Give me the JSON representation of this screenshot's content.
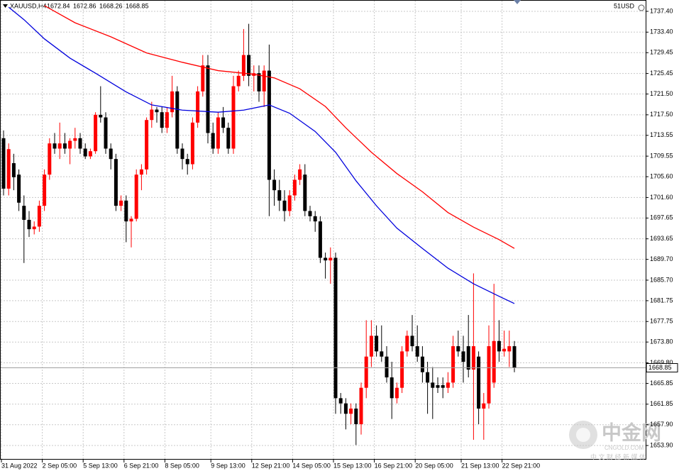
{
  "chart_data": {
    "type": "candlestick",
    "symbol": "XAUUSD,H4",
    "header_values": [
      1672.84,
      1672.86,
      1668.26,
      1668.85
    ],
    "account_label": "51USD",
    "categories": [
      "31 Aug 2022",
      null,
      null,
      null,
      null,
      null,
      null,
      null,
      "2 Sep 05:00",
      null,
      null,
      null,
      null,
      null,
      null,
      null,
      "5 Sep 13:00",
      null,
      null,
      null,
      null,
      null,
      null,
      null,
      "6 Sep 21:00",
      null,
      null,
      null,
      null,
      null,
      null,
      null,
      "8 Sep 05:00",
      null,
      null,
      null,
      null,
      null,
      null,
      null,
      null,
      "9 Sep 13:00",
      null,
      null,
      null,
      null,
      null,
      null,
      null,
      "12 Sep 21:00",
      null,
      null,
      null,
      null,
      null,
      null,
      null,
      "14 Sep 05:00",
      null,
      null,
      null,
      null,
      null,
      null,
      null,
      "15 Sep 13:00",
      null,
      null,
      null,
      null,
      null,
      null,
      null,
      "16 Sep 21:00",
      null,
      null,
      null,
      null,
      null,
      null,
      null,
      "20 Sep 05:00",
      null,
      null,
      null,
      null,
      null,
      null,
      null,
      null,
      "21 Sep 13:00",
      null,
      null,
      null,
      null,
      null,
      null,
      null,
      "22 Sep 21:00",
      null,
      null
    ],
    "ohlc": [
      [
        1713,
        1714.5,
        1702,
        1703.3
      ],
      [
        1703.3,
        1712,
        1702,
        1710.9
      ],
      [
        1708.2,
        1710,
        1703,
        1705.5
      ],
      [
        1706,
        1707,
        1699,
        1700.6
      ],
      [
        1700,
        1702,
        1689,
        1697.3
      ],
      [
        1697.3,
        1699,
        1694,
        1695.5
      ],
      [
        1695.5,
        1697,
        1694.5,
        1696
      ],
      [
        1696,
        1701,
        1695,
        1700
      ],
      [
        1700,
        1707,
        1699,
        1706
      ],
      [
        1706,
        1713,
        1705,
        1712
      ],
      [
        1712,
        1714,
        1710,
        1711
      ],
      [
        1711,
        1716,
        1709,
        1712
      ],
      [
        1712,
        1714,
        1710,
        1711
      ],
      [
        1711,
        1713,
        1708,
        1712.5
      ],
      [
        1712.5,
        1715,
        1711,
        1713
      ],
      [
        1713,
        1714,
        1710,
        1711
      ],
      [
        1711,
        1712,
        1709,
        1709.5
      ],
      [
        1709.5,
        1711,
        1709,
        1710.5
      ],
      [
        1710.5,
        1718,
        1710,
        1717.5
      ],
      [
        1717.5,
        1723,
        1716,
        1717
      ],
      [
        1717,
        1718,
        1710,
        1711
      ],
      [
        1711,
        1712,
        1707,
        1709
      ],
      [
        1709,
        1710,
        1699,
        1700
      ],
      [
        1700,
        1702,
        1699,
        1701
      ],
      [
        1701,
        1702,
        1693,
        1697
      ],
      [
        1697,
        1698,
        1692,
        1697.5
      ],
      [
        1697.5,
        1707,
        1697,
        1706
      ],
      [
        1706,
        1708,
        1703,
        1707
      ],
      [
        1707,
        1717,
        1706,
        1716.5
      ],
      [
        1716.5,
        1720,
        1715,
        1718.5
      ],
      [
        1718.5,
        1719,
        1716,
        1718
      ],
      [
        1718,
        1719,
        1714,
        1715
      ],
      [
        1715,
        1719,
        1714,
        1718
      ],
      [
        1718,
        1725,
        1717,
        1722
      ],
      [
        1722,
        1723,
        1710,
        1711
      ],
      [
        1711,
        1712,
        1707,
        1709
      ],
      [
        1709,
        1710,
        1706,
        1708
      ],
      [
        1708,
        1717,
        1707,
        1716
      ],
      [
        1716,
        1723,
        1715,
        1722
      ],
      [
        1722,
        1729,
        1721,
        1727
      ],
      [
        1727,
        1729,
        1712,
        1714
      ],
      [
        1714,
        1716,
        1710,
        1711
      ],
      [
        1711,
        1718,
        1710,
        1717
      ],
      [
        1717,
        1719,
        1714,
        1715
      ],
      [
        1715,
        1716,
        1710,
        1711
      ],
      [
        1711,
        1725,
        1710,
        1723
      ],
      [
        1723,
        1726,
        1722,
        1725
      ],
      [
        1725,
        1734,
        1724,
        1729
      ],
      [
        1729,
        1735,
        1723,
        1725
      ],
      [
        1725,
        1727,
        1722,
        1725.5
      ],
      [
        1725.5,
        1727,
        1720,
        1722
      ],
      [
        1722,
        1727,
        1719,
        1726
      ],
      [
        1726,
        1731,
        1698,
        1705
      ],
      [
        1705,
        1707,
        1700,
        1703
      ],
      [
        1703,
        1705,
        1699,
        1701
      ],
      [
        1701,
        1703,
        1697,
        1699
      ],
      [
        1699,
        1703,
        1698,
        1702
      ],
      [
        1702,
        1706,
        1701,
        1705
      ],
      [
        1705,
        1708,
        1704,
        1707
      ],
      [
        1706,
        1708,
        1698,
        1699
      ],
      [
        1699,
        1700,
        1697,
        1698
      ],
      [
        1698,
        1699,
        1695,
        1697
      ],
      [
        1697,
        1698,
        1689,
        1690
      ],
      [
        1690,
        1691,
        1686,
        1689.5
      ],
      [
        1689.5,
        1692,
        1685,
        1690
      ],
      [
        1690,
        1691,
        1660,
        1663
      ],
      [
        1663,
        1664,
        1660,
        1662
      ],
      [
        1662,
        1663,
        1657,
        1660
      ],
      [
        1660,
        1662,
        1658,
        1661
      ],
      [
        1661,
        1662,
        1654,
        1658
      ],
      [
        1658,
        1666,
        1656,
        1665
      ],
      [
        1665,
        1678,
        1663,
        1671
      ],
      [
        1671,
        1678,
        1669,
        1675
      ],
      [
        1675,
        1677,
        1671,
        1672
      ],
      [
        1672,
        1677,
        1670,
        1671
      ],
      [
        1671,
        1673,
        1666,
        1667
      ],
      [
        1667,
        1670,
        1659,
        1663
      ],
      [
        1663,
        1666,
        1662,
        1665
      ],
      [
        1665,
        1673,
        1664,
        1672
      ],
      [
        1672,
        1676,
        1671,
        1675
      ],
      [
        1675,
        1679,
        1672,
        1673
      ],
      [
        1673,
        1677,
        1670,
        1671
      ],
      [
        1671,
        1673,
        1666,
        1668
      ],
      [
        1668,
        1670,
        1660,
        1666
      ],
      [
        1666,
        1669,
        1659,
        1665
      ],
      [
        1665.5,
        1667,
        1664,
        1665
      ],
      [
        1665.5,
        1667,
        1663,
        1665
      ],
      [
        1665,
        1668,
        1664,
        1666
      ],
      [
        1666,
        1675,
        1665,
        1673
      ],
      [
        1673,
        1676,
        1671,
        1672
      ],
      [
        1672,
        1675,
        1666,
        1670
      ],
      [
        1673,
        1679,
        1667,
        1668.5
      ],
      [
        1668.5,
        1687,
        1655,
        1673
      ],
      [
        1671,
        1672,
        1658,
        1661
      ],
      [
        1661,
        1664,
        1655,
        1662
      ],
      [
        1662,
        1677,
        1661,
        1673
      ],
      [
        1666,
        1685,
        1665,
        1674
      ],
      [
        1674,
        1678,
        1670,
        1672
      ],
      [
        1672,
        1676,
        1671,
        1672.5
      ],
      [
        1672,
        1676,
        1669,
        1673
      ],
      [
        1673,
        1674,
        1668,
        1668.85
      ]
    ],
    "up_color": "#ff0000",
    "down_color": "#000000",
    "lines": [
      {
        "color": "#ff0000",
        "x": [
          8,
          14,
          21,
          28,
          35,
          42,
          49,
          53,
          58,
          63,
          67,
          72,
          77,
          82,
          87,
          92,
          97,
          100
        ],
        "values": [
          1738.5,
          1735.2,
          1732.5,
          1729.4,
          1727.6,
          1726.0,
          1725.3,
          1724.6,
          1722.5,
          1719.1,
          1715.0,
          1710.3,
          1706.2,
          1702.7,
          1698.7,
          1695.9,
          1693.5,
          1691.8
        ]
      },
      {
        "color": "#0000dd",
        "x": [
          1,
          4,
          8,
          13,
          18,
          24,
          29,
          35,
          42,
          47,
          52,
          56,
          61,
          65,
          69,
          73,
          77,
          82,
          87,
          92,
          97,
          100
        ],
        "values": [
          1738.2,
          1735.8,
          1732.1,
          1728.4,
          1725.5,
          1721.9,
          1719.4,
          1718.4,
          1718.0,
          1718.4,
          1719.4,
          1717.8,
          1714.3,
          1710.3,
          1704.8,
          1700.0,
          1695.7,
          1691.8,
          1688.0,
          1685.0,
          1682.6,
          1681.2
        ]
      }
    ],
    "ylim": [
      1651.18,
      1739.58
    ],
    "yticks": [
      {
        "value": 1737.4,
        "label": "1737.40"
      },
      {
        "value": 1733.4,
        "label": "1733.40"
      },
      {
        "value": 1729.45,
        "label": "1729.45"
      },
      {
        "value": 1725.45,
        "label": "1725.45"
      },
      {
        "value": 1721.5,
        "label": "1721.50"
      },
      {
        "value": 1717.5,
        "label": "1717.50"
      },
      {
        "value": 1713.55,
        "label": "1713.55"
      },
      {
        "value": 1709.55,
        "label": "1709.55"
      },
      {
        "value": 1705.6,
        "label": "1705.60"
      },
      {
        "value": 1701.6,
        "label": "1701.60"
      },
      {
        "value": 1697.65,
        "label": "1697.65"
      },
      {
        "value": 1693.65,
        "label": "1693.65"
      },
      {
        "value": 1689.7,
        "label": "1689.70"
      },
      {
        "value": 1685.7,
        "label": "1685.70"
      },
      {
        "value": 1681.75,
        "label": "1681.75"
      },
      {
        "value": 1677.75,
        "label": "1677.75"
      },
      {
        "value": 1673.8,
        "label": "1673.80"
      },
      {
        "value": 1669.8,
        "label": "1669.80"
      },
      {
        "value": 1665.85,
        "label": "1665.85"
      },
      {
        "value": 1661.85,
        "label": "1661.85"
      },
      {
        "value": 1657.9,
        "label": "1657.90"
      },
      {
        "value": 1653.9,
        "label": "1653.90"
      }
    ],
    "grid": true,
    "current_price": 1668.85
  },
  "watermark": {
    "logo": "中金网",
    "site": "CNGOLD.COM",
    "slogan": "中 文 财 经 新 媒 体"
  }
}
